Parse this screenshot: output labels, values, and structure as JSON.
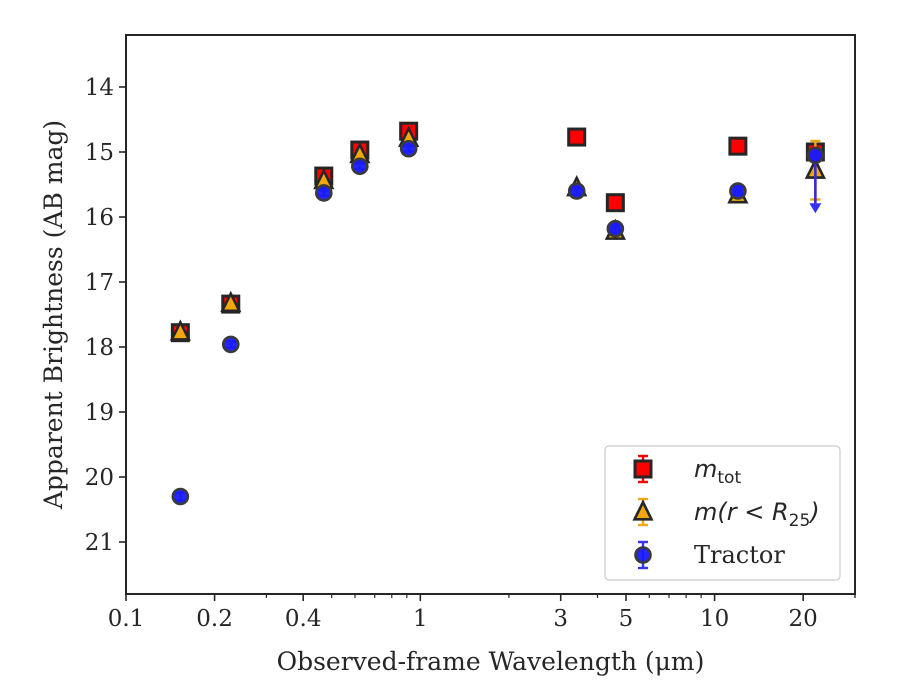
{
  "chart_data": {
    "type": "scatter",
    "title": "",
    "xlabel": "Observed-frame Wavelength (μm)",
    "ylabel": "Apparent Brightness (AB mag)",
    "xscale": "log",
    "xlim": [
      0.1,
      30
    ],
    "ylim": [
      21.8,
      13.2
    ],
    "y_inverted": true,
    "grid": false,
    "legend_position": "lower right",
    "x_ticks": [
      {
        "value": 0.1,
        "label": "0.1"
      },
      {
        "value": 0.2,
        "label": "0.2"
      },
      {
        "value": 0.4,
        "label": "0.4"
      },
      {
        "value": 1,
        "label": "1"
      },
      {
        "value": 3,
        "label": "3"
      },
      {
        "value": 5,
        "label": "5"
      },
      {
        "value": 10,
        "label": "10"
      },
      {
        "value": 20,
        "label": "20"
      }
    ],
    "y_ticks": [
      {
        "value": 14,
        "label": "14"
      },
      {
        "value": 15,
        "label": "15"
      },
      {
        "value": 16,
        "label": "16"
      },
      {
        "value": 17,
        "label": "17"
      },
      {
        "value": 18,
        "label": "18"
      },
      {
        "value": 19,
        "label": "19"
      },
      {
        "value": 20,
        "label": "20"
      },
      {
        "value": 21,
        "label": "21"
      }
    ],
    "series": [
      {
        "name": "m_tot",
        "legend_main": "m",
        "legend_sub": "tot",
        "marker": "square",
        "color": "#ff0000",
        "edge": "#262626",
        "errcolor": "#ff0000",
        "x": [
          0.153,
          0.227,
          0.47,
          0.623,
          0.913,
          3.4,
          4.6,
          12,
          22
        ],
        "y": [
          17.78,
          17.34,
          15.37,
          14.97,
          14.68,
          14.77,
          15.78,
          14.91,
          15.0
        ],
        "yerr": [
          0.04,
          0.04,
          0.03,
          0.03,
          0.03,
          0.03,
          0.03,
          0.04,
          0.12
        ]
      },
      {
        "name": "m(r < R25)",
        "legend_main": "m(r < R",
        "legend_sub": "25",
        "legend_tail": ")",
        "marker": "triangle",
        "color": "#f2a80d",
        "edge": "#262626",
        "errcolor": "#f2a80d",
        "x": [
          0.153,
          0.227,
          0.47,
          0.623,
          0.913,
          3.4,
          4.6,
          12,
          22
        ],
        "y": [
          17.77,
          17.33,
          15.44,
          15.04,
          14.79,
          15.55,
          16.22,
          15.66,
          15.28
        ],
        "yerr": [
          0.04,
          0.04,
          0.03,
          0.03,
          0.03,
          0.04,
          0.05,
          0.08,
          0.45
        ]
      },
      {
        "name": "Tractor",
        "legend_main": "Tractor",
        "marker": "circle",
        "color": "#1a1aff",
        "edge": "#3a3a3a",
        "errcolor": "#3333ff",
        "x": [
          0.153,
          0.227,
          0.47,
          0.623,
          0.913,
          3.4,
          4.6,
          12,
          22
        ],
        "y": [
          20.3,
          17.96,
          15.63,
          15.22,
          14.95,
          15.6,
          16.18,
          15.6,
          15.05
        ],
        "yerr": [
          0.06,
          0.05,
          0.04,
          0.04,
          0.04,
          0.05,
          0.06,
          0.06,
          0.1
        ],
        "upper_limit": [
          false,
          false,
          false,
          false,
          false,
          false,
          false,
          false,
          true
        ]
      }
    ]
  }
}
